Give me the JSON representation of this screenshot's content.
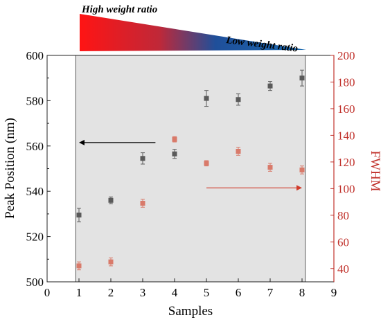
{
  "banner": {
    "high_label": "High weight ratio",
    "low_label": "Low weight ratio",
    "high_color": "#ff1a1a",
    "low_color": "#1a5ea8"
  },
  "chart_data": {
    "type": "scatter",
    "title": "",
    "xlabel": "Samples",
    "ylabel_left": "Peak Position (nm)",
    "ylabel_right": "FWHM",
    "xlim": [
      0,
      9
    ],
    "ylim_left": [
      500,
      600
    ],
    "ylim_right": [
      30,
      200
    ],
    "x_ticks": [
      "0",
      "1",
      "2",
      "3",
      "4",
      "5",
      "6",
      "7",
      "8",
      "9"
    ],
    "y_left_ticks": [
      "500",
      "520",
      "540",
      "560",
      "580",
      "600"
    ],
    "y_right_ticks": [
      "40",
      "60",
      "80",
      "100",
      "120",
      "140",
      "160",
      "180",
      "200"
    ],
    "shaded_range_x": [
      0.9,
      8.1
    ],
    "shade_color": "#e3e3e3",
    "series": [
      {
        "axis": "left",
        "color": "#5a5a5a",
        "x": [
          1,
          2,
          3,
          4,
          5,
          6,
          7,
          8
        ],
        "y": [
          529.5,
          536,
          554.5,
          556.5,
          581,
          580.5,
          586.5,
          590
        ],
        "err": [
          3,
          1.5,
          2.5,
          2,
          3.5,
          2.5,
          2,
          3.5
        ]
      },
      {
        "axis": "right",
        "color": "#d97a6a",
        "x": [
          1,
          2,
          3,
          4,
          5,
          6,
          7,
          8
        ],
        "y": [
          42,
          45,
          89,
          137,
          119,
          128,
          116,
          114
        ],
        "err": [
          3,
          3,
          3,
          2,
          2,
          3,
          3,
          3
        ]
      }
    ],
    "arrows": [
      {
        "points_to": "left",
        "from_x": 3.4,
        "to_x": 1.0,
        "y_left": 561.5,
        "color": "#000000"
      },
      {
        "points_to": "right",
        "from_x": 5.0,
        "to_x": 8.0,
        "y_left": 541.5,
        "color": "#d13a2a"
      }
    ]
  }
}
